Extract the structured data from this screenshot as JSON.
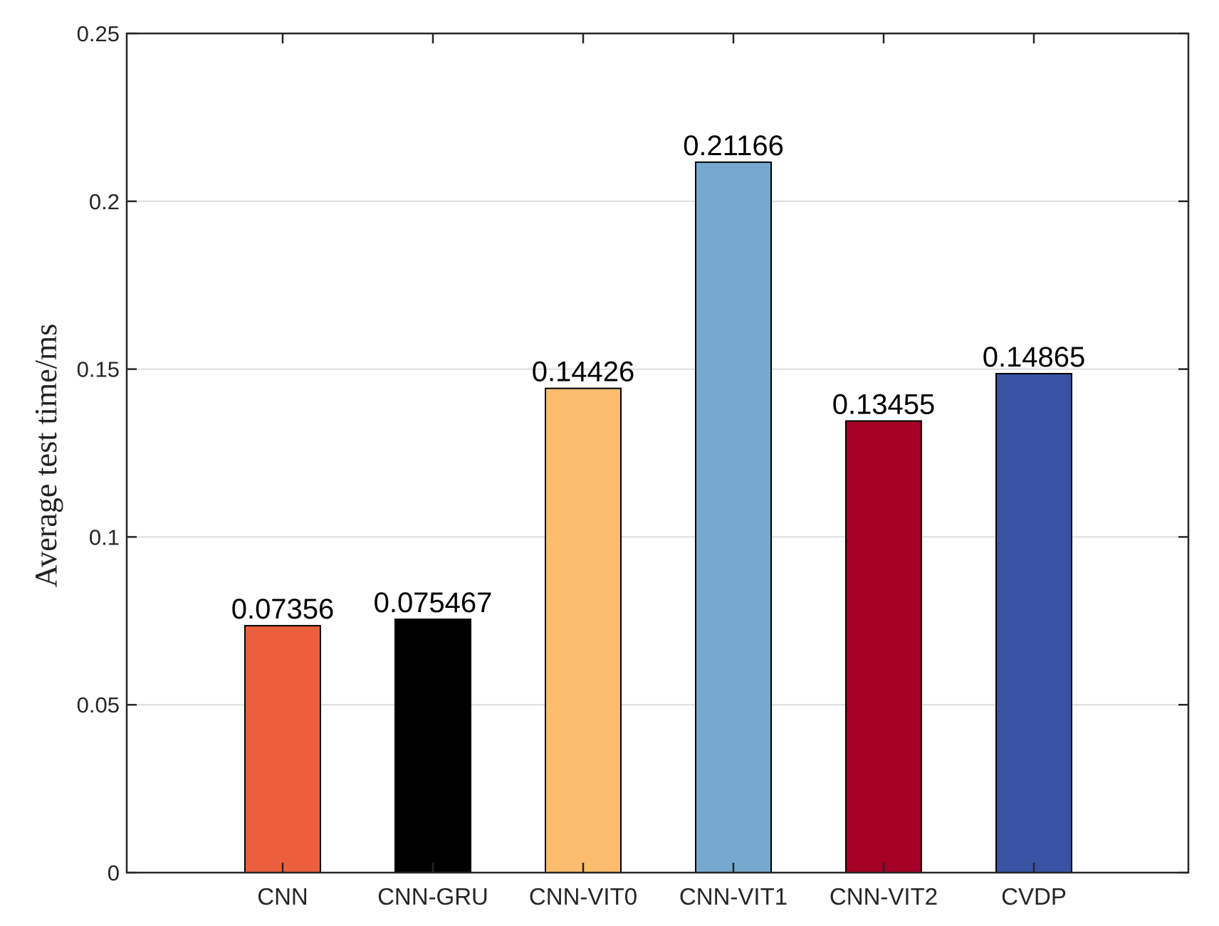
{
  "chart_data": {
    "type": "bar",
    "title": "",
    "xlabel": "",
    "ylabel": "Average test time/ms",
    "categories": [
      "CNN",
      "CNN-GRU",
      "CNN-VIT0",
      "CNN-VIT1",
      "CNN-VIT2",
      "CVDP"
    ],
    "values": [
      0.07356,
      0.075467,
      0.14426,
      0.21166,
      0.13455,
      0.14865
    ],
    "value_labels": [
      "0.07356",
      "0.075467",
      "0.14426",
      "0.21166",
      "0.13455",
      "0.14865"
    ],
    "bar_colors": [
      "#EC5F3E",
      "#000000",
      "#FBBC6E",
      "#75AACE",
      "#A50026",
      "#3853A4"
    ],
    "ylim": [
      0,
      0.25
    ],
    "yticks": [
      0,
      0.05,
      0.1,
      0.15,
      0.2,
      0.25
    ],
    "ytick_labels": [
      "0",
      "0.05",
      "0.1",
      "0.15",
      "0.2",
      "0.25"
    ],
    "grid": "horizontal",
    "legend": "none"
  }
}
